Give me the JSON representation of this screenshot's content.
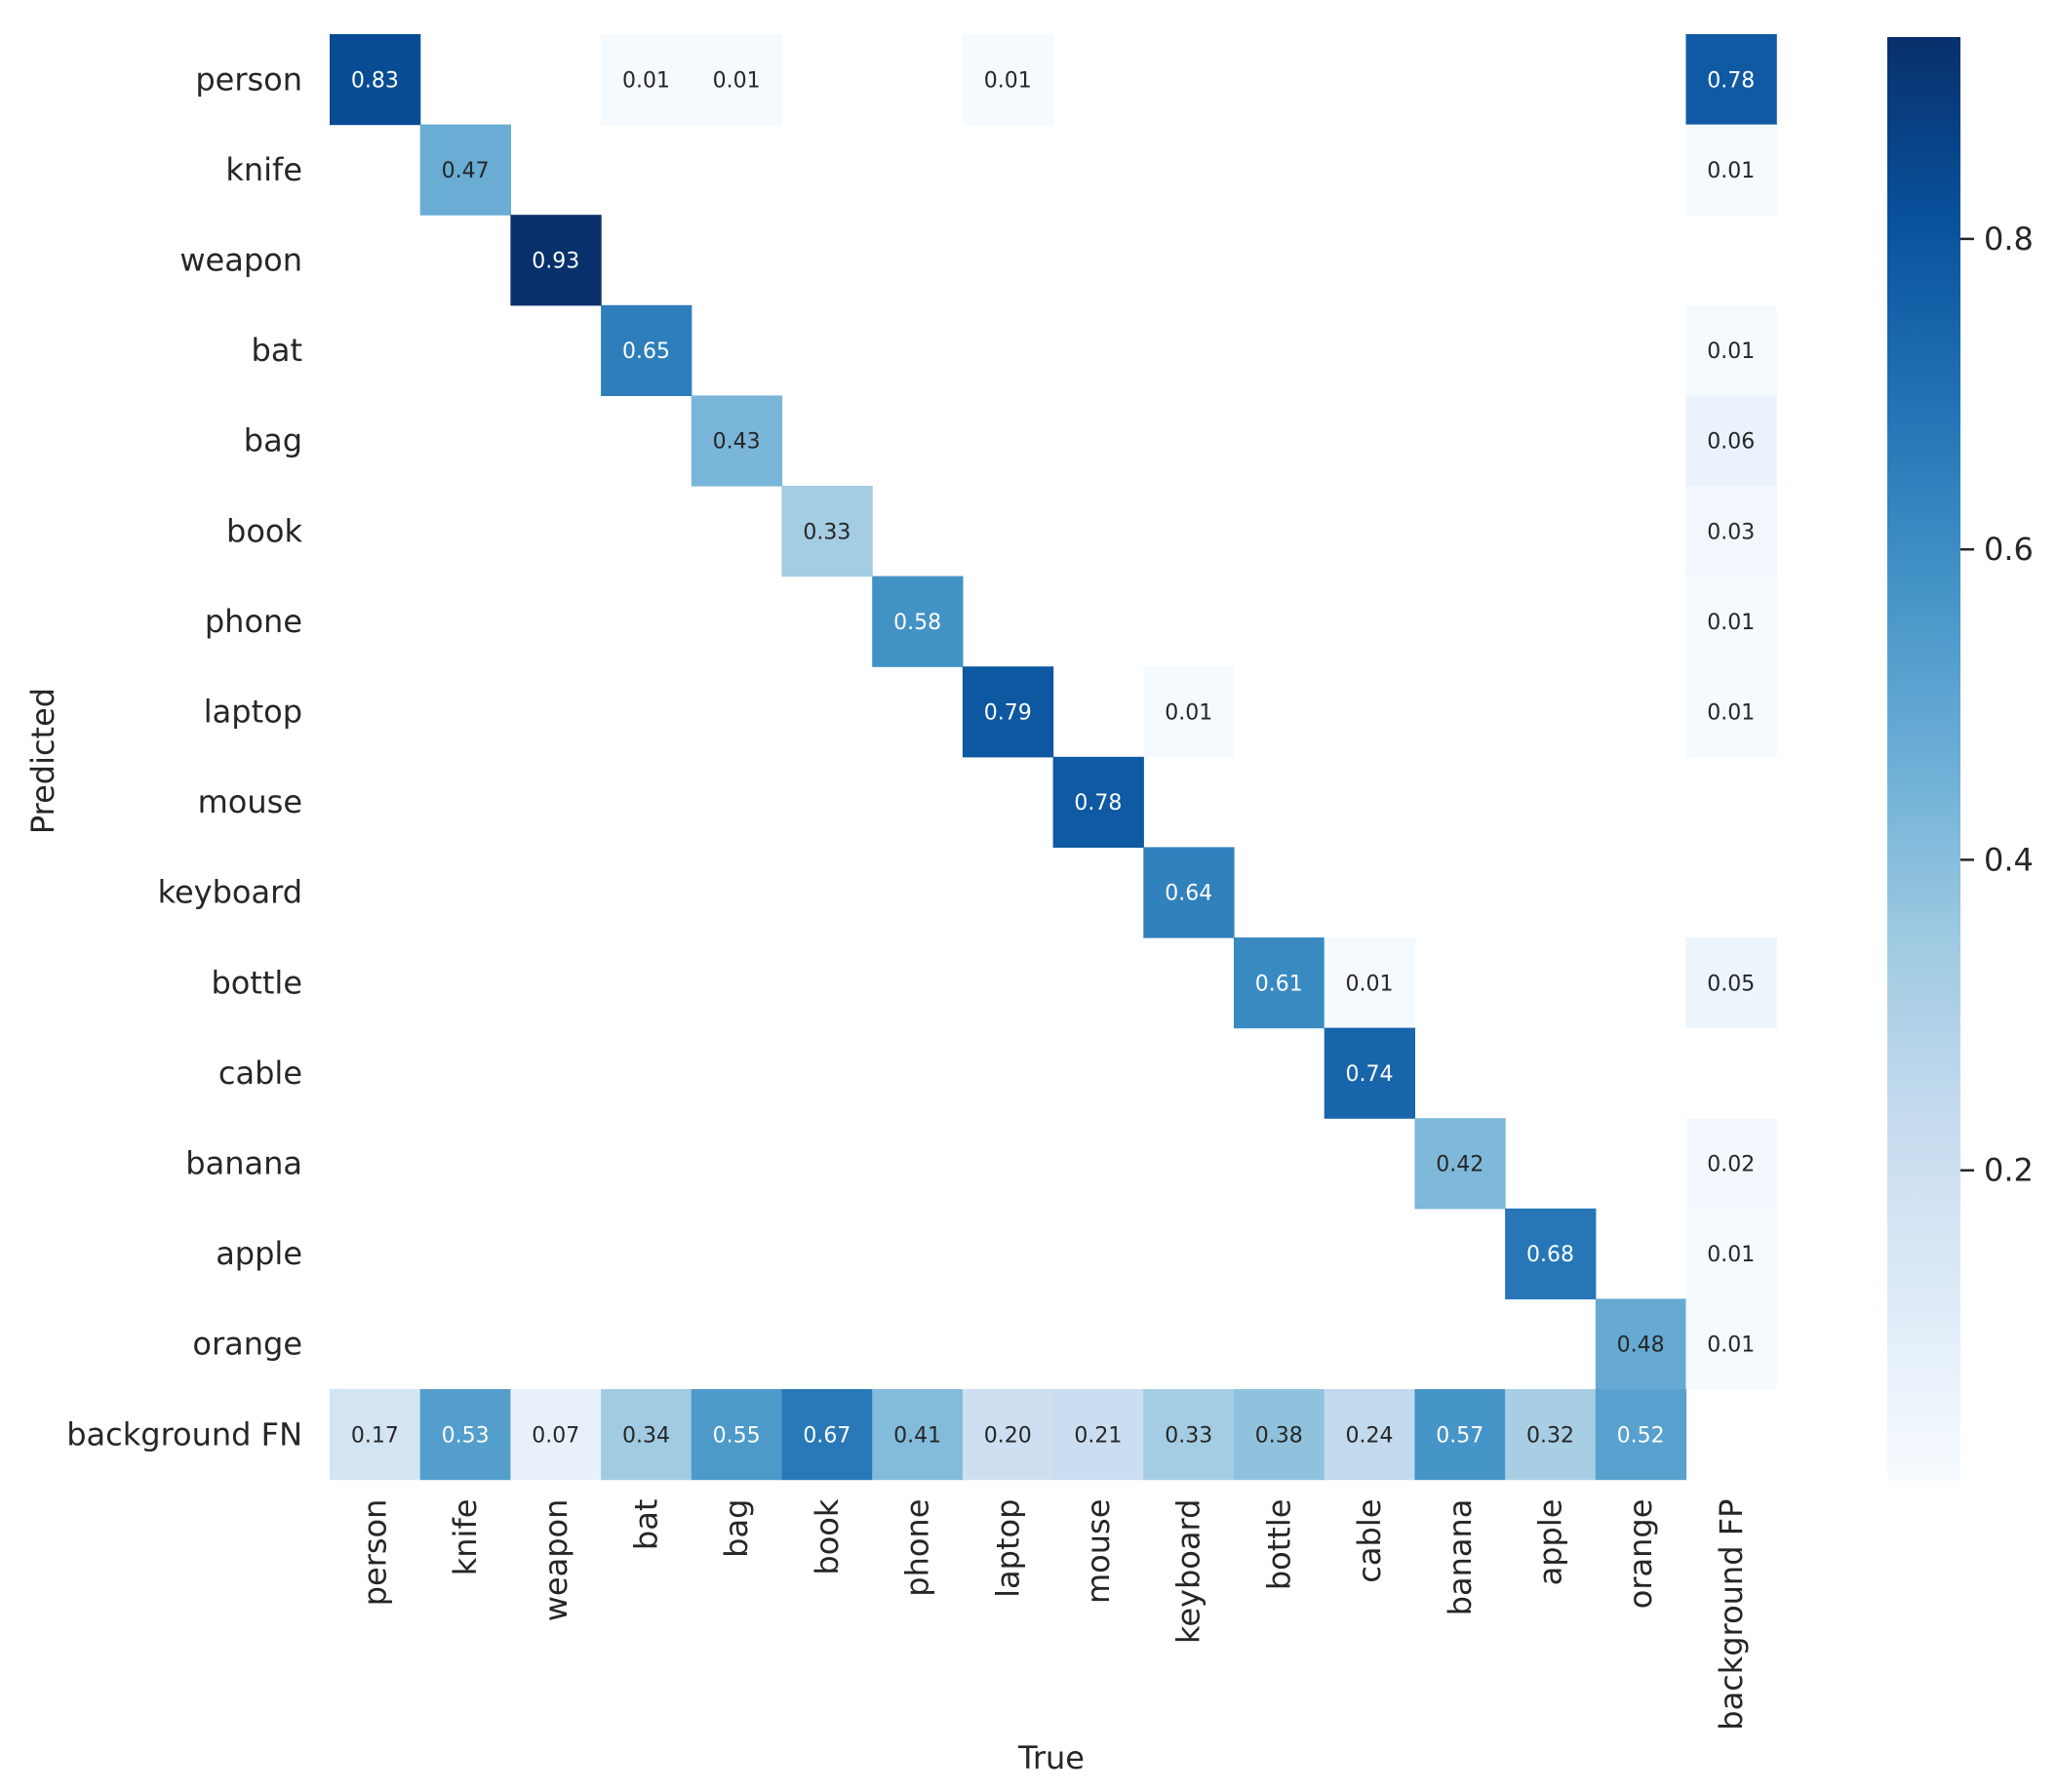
{
  "chart_data": {
    "type": "heatmap",
    "xlabel": "True",
    "ylabel": "Predicted",
    "row_labels": [
      "person",
      "knife",
      "weapon",
      "bat",
      "bag",
      "book",
      "phone",
      "laptop",
      "mouse",
      "keyboard",
      "bottle",
      "cable",
      "banana",
      "apple",
      "orange",
      "background FN"
    ],
    "col_labels": [
      "person",
      "knife",
      "weapon",
      "bat",
      "bag",
      "book",
      "phone",
      "laptop",
      "mouse",
      "keyboard",
      "bottle",
      "cable",
      "banana",
      "apple",
      "orange",
      "background FP"
    ],
    "cells": [
      {
        "row": 0,
        "col": 0,
        "value": 0.83,
        "label": "0.83"
      },
      {
        "row": 0,
        "col": 3,
        "value": 0.01,
        "label": "0.01"
      },
      {
        "row": 0,
        "col": 4,
        "value": 0.01,
        "label": "0.01"
      },
      {
        "row": 0,
        "col": 7,
        "value": 0.01,
        "label": "0.01"
      },
      {
        "row": 0,
        "col": 15,
        "value": 0.78,
        "label": "0.78"
      },
      {
        "row": 1,
        "col": 1,
        "value": 0.47,
        "label": "0.47"
      },
      {
        "row": 1,
        "col": 15,
        "value": 0.01,
        "label": "0.01"
      },
      {
        "row": 2,
        "col": 2,
        "value": 0.93,
        "label": "0.93"
      },
      {
        "row": 3,
        "col": 3,
        "value": 0.65,
        "label": "0.65"
      },
      {
        "row": 3,
        "col": 15,
        "value": 0.01,
        "label": "0.01"
      },
      {
        "row": 4,
        "col": 4,
        "value": 0.43,
        "label": "0.43"
      },
      {
        "row": 4,
        "col": 15,
        "value": 0.06,
        "label": "0.06"
      },
      {
        "row": 5,
        "col": 5,
        "value": 0.33,
        "label": "0.33"
      },
      {
        "row": 5,
        "col": 15,
        "value": 0.03,
        "label": "0.03"
      },
      {
        "row": 6,
        "col": 6,
        "value": 0.58,
        "label": "0.58"
      },
      {
        "row": 6,
        "col": 15,
        "value": 0.01,
        "label": "0.01"
      },
      {
        "row": 7,
        "col": 7,
        "value": 0.79,
        "label": "0.79"
      },
      {
        "row": 7,
        "col": 9,
        "value": 0.01,
        "label": "0.01"
      },
      {
        "row": 7,
        "col": 15,
        "value": 0.01,
        "label": "0.01"
      },
      {
        "row": 8,
        "col": 8,
        "value": 0.78,
        "label": "0.78"
      },
      {
        "row": 9,
        "col": 9,
        "value": 0.64,
        "label": "0.64"
      },
      {
        "row": 10,
        "col": 10,
        "value": 0.61,
        "label": "0.61"
      },
      {
        "row": 10,
        "col": 11,
        "value": 0.01,
        "label": "0.01"
      },
      {
        "row": 10,
        "col": 15,
        "value": 0.05,
        "label": "0.05"
      },
      {
        "row": 11,
        "col": 11,
        "value": 0.74,
        "label": "0.74"
      },
      {
        "row": 12,
        "col": 12,
        "value": 0.42,
        "label": "0.42"
      },
      {
        "row": 12,
        "col": 15,
        "value": 0.02,
        "label": "0.02"
      },
      {
        "row": 13,
        "col": 13,
        "value": 0.68,
        "label": "0.68"
      },
      {
        "row": 13,
        "col": 15,
        "value": 0.01,
        "label": "0.01"
      },
      {
        "row": 14,
        "col": 14,
        "value": 0.48,
        "label": "0.48"
      },
      {
        "row": 14,
        "col": 15,
        "value": 0.01,
        "label": "0.01"
      },
      {
        "row": 15,
        "col": 0,
        "value": 0.17,
        "label": "0.17"
      },
      {
        "row": 15,
        "col": 1,
        "value": 0.53,
        "label": "0.53"
      },
      {
        "row": 15,
        "col": 2,
        "value": 0.07,
        "label": "0.07"
      },
      {
        "row": 15,
        "col": 3,
        "value": 0.34,
        "label": "0.34"
      },
      {
        "row": 15,
        "col": 4,
        "value": 0.55,
        "label": "0.55"
      },
      {
        "row": 15,
        "col": 5,
        "value": 0.67,
        "label": "0.67"
      },
      {
        "row": 15,
        "col": 6,
        "value": 0.41,
        "label": "0.41"
      },
      {
        "row": 15,
        "col": 7,
        "value": 0.2,
        "label": "0.20"
      },
      {
        "row": 15,
        "col": 8,
        "value": 0.21,
        "label": "0.21"
      },
      {
        "row": 15,
        "col": 9,
        "value": 0.33,
        "label": "0.33"
      },
      {
        "row": 15,
        "col": 10,
        "value": 0.38,
        "label": "0.38"
      },
      {
        "row": 15,
        "col": 11,
        "value": 0.24,
        "label": "0.24"
      },
      {
        "row": 15,
        "col": 12,
        "value": 0.57,
        "label": "0.57"
      },
      {
        "row": 15,
        "col": 13,
        "value": 0.32,
        "label": "0.32"
      },
      {
        "row": 15,
        "col": 14,
        "value": 0.52,
        "label": "0.52"
      }
    ],
    "colorbar": {
      "colormap": "Blues",
      "range": [
        0,
        0.93
      ],
      "ticks": [
        0.2,
        0.4,
        0.6,
        0.8
      ],
      "tick_labels": [
        "0.2",
        "0.4",
        "0.6",
        "0.8"
      ]
    }
  }
}
